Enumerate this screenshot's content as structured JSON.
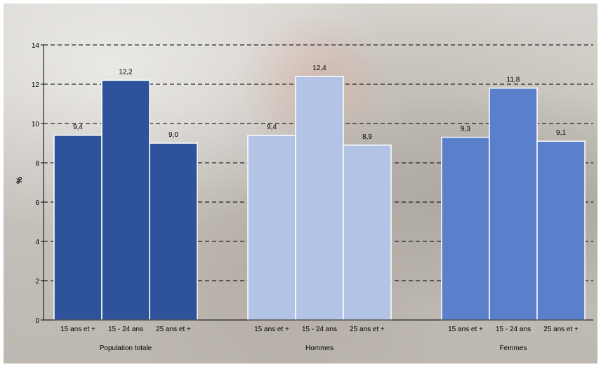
{
  "chart_data": {
    "type": "bar",
    "ylabel": "%",
    "ylim": [
      0,
      14
    ],
    "yticks": [
      0,
      2,
      4,
      6,
      8,
      10,
      12,
      14
    ],
    "grid": "dashed horizontal",
    "groups": [
      {
        "label": "Population totale",
        "color": "#2f539b",
        "categories": [
          "15 ans et +",
          "15 - 24 ans",
          "25 ans et +"
        ],
        "values": [
          9.4,
          12.2,
          9.0
        ],
        "value_labels": [
          "9,4",
          "12,2",
          "9,0"
        ]
      },
      {
        "label": "Hommes",
        "color": "#b3c3e6",
        "categories": [
          "15 ans et +",
          "15 - 24 ans",
          "25 ans et +"
        ],
        "values": [
          9.4,
          12.4,
          8.9
        ],
        "value_labels": [
          "9,4",
          "12,4",
          "8,9"
        ]
      },
      {
        "label": "Femmes",
        "color": "#5b80cb",
        "categories": [
          "15 ans et +",
          "15 - 24 ans",
          "25 ans et +"
        ],
        "values": [
          9.3,
          11.8,
          9.1
        ],
        "value_labels": [
          "9,3",
          "11,8",
          "9,1"
        ]
      }
    ]
  }
}
